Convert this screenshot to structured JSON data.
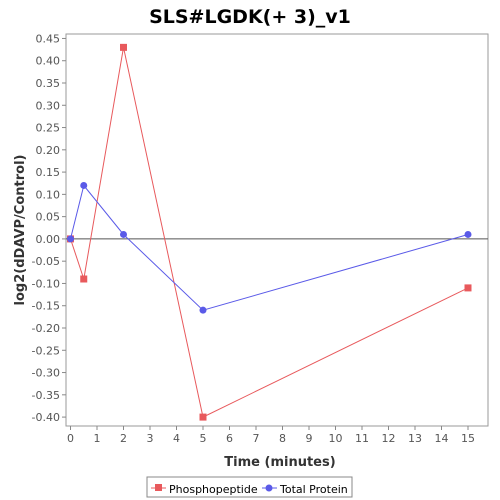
{
  "chart_data": {
    "type": "line",
    "title": "SLS#LGDK(+ 3)_v1",
    "xlabel": "Time (minutes)",
    "ylabel": "log2(dDAVP/Control)",
    "xlim": [
      0,
      15.5
    ],
    "ylim": [
      -0.42,
      0.46
    ],
    "x_ticks": [
      0,
      1,
      2,
      3,
      4,
      5,
      6,
      7,
      8,
      9,
      10,
      11,
      12,
      13,
      14,
      15
    ],
    "y_ticks": [
      0.45,
      0.4,
      0.35,
      0.3,
      0.25,
      0.2,
      0.15,
      0.1,
      0.05,
      0.0,
      -0.05,
      -0.1,
      -0.15,
      -0.2,
      -0.25,
      -0.3,
      -0.35,
      -0.4
    ],
    "zero_line": true,
    "grid": false,
    "legend_position": "bottom",
    "series": [
      {
        "name": "Phosphopeptide",
        "color": "#e8595c",
        "marker": "square",
        "x": [
          0,
          0.5,
          2,
          5,
          15
        ],
        "y": [
          0.0,
          -0.09,
          0.43,
          -0.4,
          -0.11
        ]
      },
      {
        "name": "Total Protein",
        "color": "#5a5ae8",
        "marker": "circle",
        "x": [
          0,
          0.5,
          2,
          5,
          15
        ],
        "y": [
          0.0,
          0.12,
          0.01,
          -0.16,
          0.01
        ]
      }
    ]
  }
}
